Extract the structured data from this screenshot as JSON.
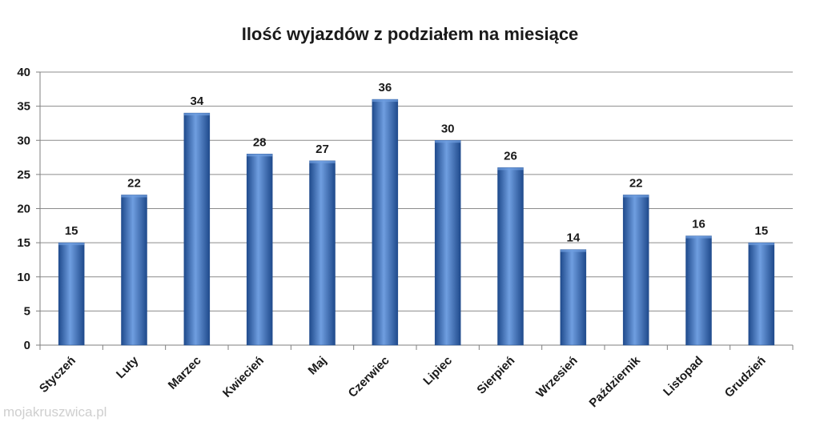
{
  "chart_data": {
    "type": "bar",
    "title": "Ilość wyjazdów z podziałem na miesiące",
    "xlabel": "",
    "ylabel": "",
    "categories": [
      "Styczeń",
      "Luty",
      "Marzec",
      "Kwiecień",
      "Maj",
      "Czerwiec",
      "Lipiec",
      "Sierpień",
      "Wrzesień",
      "Październik",
      "Listopad",
      "Grudzień"
    ],
    "values": [
      15,
      22,
      34,
      28,
      27,
      36,
      30,
      26,
      14,
      22,
      16,
      15
    ],
    "ylim": [
      0,
      40
    ],
    "yticks": [
      0,
      5,
      10,
      15,
      20,
      25,
      30,
      35,
      40
    ],
    "grid": true,
    "legend": "none",
    "bar_color": "#3a6fc0",
    "bar_color_light": "#6f9ee0",
    "bar_color_dark": "#1f4a8c"
  },
  "watermark": {
    "text": "mojakruszwica.pl"
  }
}
